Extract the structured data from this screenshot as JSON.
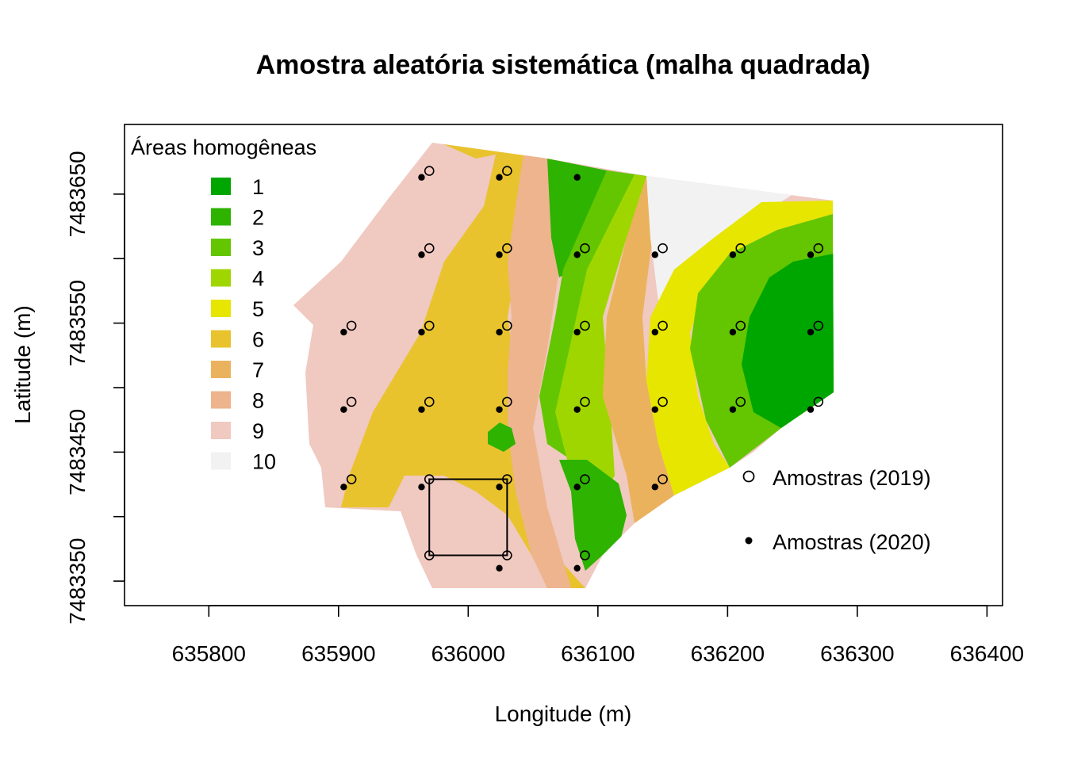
{
  "chart_data": {
    "type": "scatter",
    "title": "Amostra aleatória sistemática (malha quadrada)",
    "xlabel": "Longitude (m)",
    "ylabel": "Latitude (m)",
    "xlim": [
      635735,
      636412
    ],
    "ylim": [
      7483331,
      7483704
    ],
    "x_ticks": [
      635800,
      635900,
      636000,
      636100,
      636200,
      636300,
      636400
    ],
    "y_ticks": [
      7483350,
      7483400,
      7483450,
      7483500,
      7483550,
      7483600,
      7483650
    ],
    "y_tick_labels": [
      "7483350",
      "",
      "7483450",
      "",
      "7483550",
      "",
      "7483650"
    ],
    "grid": false,
    "zones_legend": {
      "title": "Áreas homogêneas",
      "placement": "top-left",
      "entries": [
        {
          "label": "1",
          "color": "#00a600"
        },
        {
          "label": "2",
          "color": "#2db300"
        },
        {
          "label": "3",
          "color": "#63c600"
        },
        {
          "label": "4",
          "color": "#a0d600"
        },
        {
          "label": "5",
          "color": "#e6e600"
        },
        {
          "label": "6",
          "color": "#e8c32e"
        },
        {
          "label": "7",
          "color": "#ebb25e"
        },
        {
          "label": "8",
          "color": "#edb48e"
        },
        {
          "label": "9",
          "color": "#f0c9c0"
        },
        {
          "label": "10",
          "color": "#f2f2f2"
        }
      ]
    },
    "points_legend": {
      "placement": "bottom-right",
      "entries": [
        {
          "label": "Amostras (2019)",
          "marker": "open-circle"
        },
        {
          "label": "Amostras (2020)",
          "marker": "filled-dot"
        }
      ]
    },
    "series": [
      {
        "name": "Amostras (2019)",
        "marker": "open-circle",
        "points": [
          [
            635970,
            7483668
          ],
          [
            636030,
            7483668
          ],
          [
            635970,
            7483608
          ],
          [
            636030,
            7483608
          ],
          [
            636090,
            7483608
          ],
          [
            636150,
            7483608
          ],
          [
            636210,
            7483608
          ],
          [
            636270,
            7483608
          ],
          [
            635910,
            7483548
          ],
          [
            635970,
            7483548
          ],
          [
            636030,
            7483548
          ],
          [
            636090,
            7483548
          ],
          [
            636150,
            7483548
          ],
          [
            636210,
            7483548
          ],
          [
            636270,
            7483548
          ],
          [
            635910,
            7483489
          ],
          [
            635970,
            7483489
          ],
          [
            636030,
            7483489
          ],
          [
            636090,
            7483489
          ],
          [
            636150,
            7483489
          ],
          [
            636210,
            7483489
          ],
          [
            636270,
            7483489
          ],
          [
            635910,
            7483429
          ],
          [
            635970,
            7483429
          ],
          [
            636030,
            7483429
          ],
          [
            636090,
            7483429
          ],
          [
            636150,
            7483429
          ],
          [
            635970,
            7483370
          ],
          [
            636030,
            7483370
          ],
          [
            636090,
            7483370
          ]
        ]
      },
      {
        "name": "Amostras (2020)",
        "marker": "filled-dot",
        "points": [
          [
            635964,
            7483663
          ],
          [
            636024,
            7483663
          ],
          [
            636084,
            7483663
          ],
          [
            635964,
            7483603
          ],
          [
            636024,
            7483603
          ],
          [
            636084,
            7483603
          ],
          [
            636144,
            7483603
          ],
          [
            636204,
            7483603
          ],
          [
            636264,
            7483603
          ],
          [
            635904,
            7483543
          ],
          [
            635964,
            7483543
          ],
          [
            636024,
            7483543
          ],
          [
            636084,
            7483543
          ],
          [
            636144,
            7483543
          ],
          [
            636204,
            7483543
          ],
          [
            636264,
            7483543
          ],
          [
            635904,
            7483483
          ],
          [
            635964,
            7483483
          ],
          [
            636024,
            7483483
          ],
          [
            636084,
            7483483
          ],
          [
            636144,
            7483483
          ],
          [
            636204,
            7483483
          ],
          [
            636264,
            7483483
          ],
          [
            635904,
            7483423
          ],
          [
            635964,
            7483423
          ],
          [
            636024,
            7483423
          ],
          [
            636084,
            7483423
          ],
          [
            636144,
            7483423
          ],
          [
            636024,
            7483360
          ],
          [
            636084,
            7483360
          ]
        ]
      }
    ],
    "highlight_square": {
      "x": [
        635970,
        636030
      ],
      "y": [
        7483370,
        7483429
      ]
    }
  }
}
